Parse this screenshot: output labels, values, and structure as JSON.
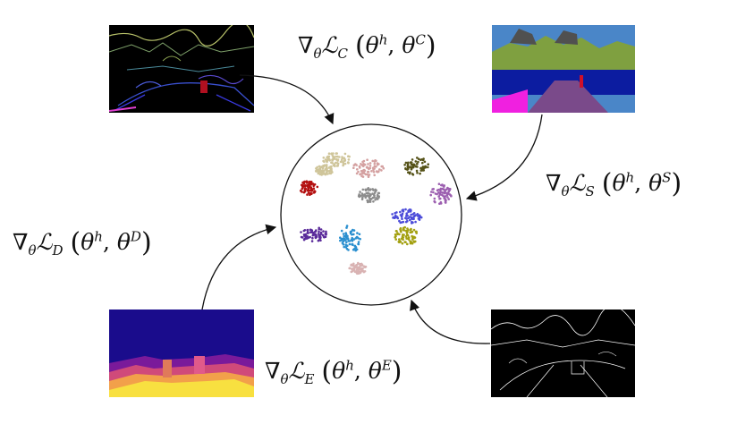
{
  "labels": {
    "c": {
      "grad": "∇",
      "grad_sub": "θ",
      "loss": "ℒ",
      "loss_sub": "C",
      "arg1": "θ",
      "arg1_sup": "h",
      "arg2": "θ",
      "arg2_sup": "C"
    },
    "s": {
      "grad": "∇",
      "grad_sub": "θ",
      "loss": "ℒ",
      "loss_sub": "S",
      "arg1": "θ",
      "arg1_sup": "h",
      "arg2": "θ",
      "arg2_sup": "S"
    },
    "d": {
      "grad": "∇",
      "grad_sub": "θ",
      "loss": "ℒ",
      "loss_sub": "D",
      "arg1": "θ",
      "arg1_sup": "h",
      "arg2": "θ",
      "arg2_sup": "D"
    },
    "e": {
      "grad": "∇",
      "grad_sub": "θ",
      "loss": "ℒ",
      "loss_sub": "E",
      "arg1": "θ",
      "arg1_sup": "h",
      "arg2": "θ",
      "arg2_sup": "E"
    }
  },
  "thumbnails": {
    "contours": "panoptic contour image",
    "segmentation": "semantic segmentation image",
    "depth": "depth map image",
    "edges": "edge map image"
  },
  "colors": {
    "cluster_colors": [
      "#cfc59a",
      "#a89a5a",
      "#555218",
      "#b30f0f",
      "#d4a0a0",
      "#8c8c8c",
      "#9c5fb0",
      "#4c4cd9",
      "#5a2a9a",
      "#2a8fcf",
      "#a3a010",
      "#d9b3b3"
    ],
    "seg_sky": "#4a86c8",
    "seg_veg": "#7fa040",
    "seg_car": "#0c1ca0",
    "seg_road": "#7a4a8a",
    "seg_building": "#505050",
    "seg_sidewalk": "#f020e0"
  }
}
